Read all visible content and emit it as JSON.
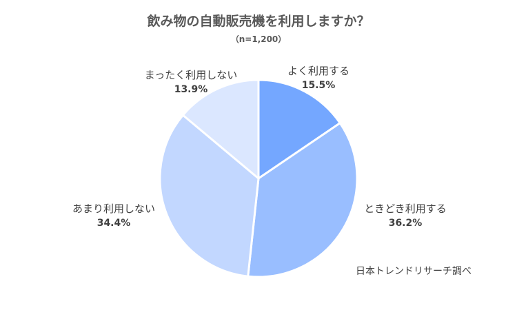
{
  "chart_data": {
    "type": "pie",
    "title": "飲み物の自動販売機を利用しますか？",
    "subtitle": "（n=1,200）",
    "slices": [
      {
        "label": "よく利用する",
        "value": 15.5,
        "value_label": "15.5%",
        "color": "#74a7ff"
      },
      {
        "label": "ときどき利用する",
        "value": 36.2,
        "value_label": "36.2%",
        "color": "#99beff"
      },
      {
        "label": "あまり利用しない",
        "value": 34.4,
        "value_label": "34.4%",
        "color": "#c2d7ff"
      },
      {
        "label": "まったく利用しない",
        "value": 13.9,
        "value_label": "13.9%",
        "color": "#dbe7ff"
      }
    ],
    "start_angle": "12 o'clock",
    "direction": "clockwise"
  },
  "source": "日本トレンドリサーチ調べ"
}
